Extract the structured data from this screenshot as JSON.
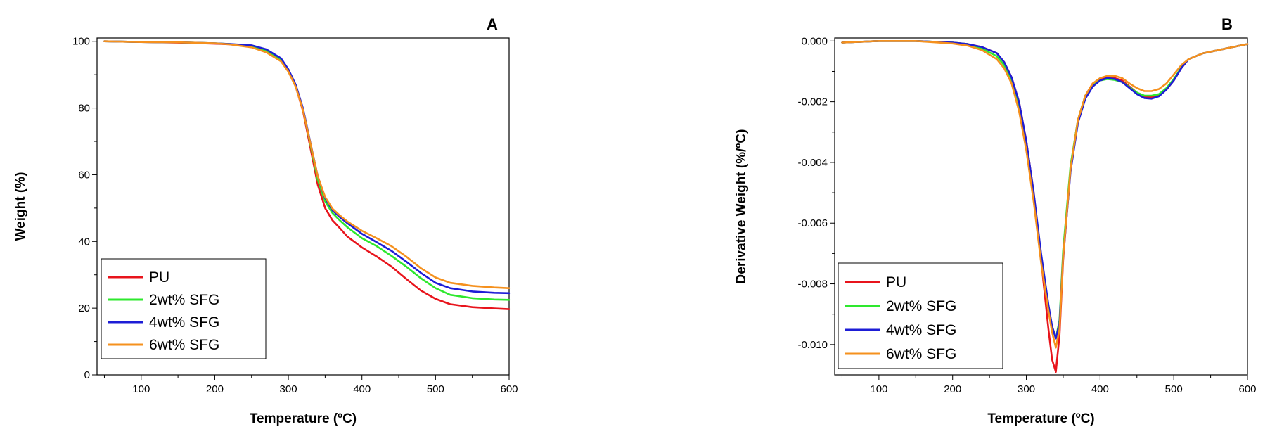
{
  "chart_data": [
    {
      "type": "line",
      "panel_label": "A",
      "title": "",
      "xlabel": "Temperature (ºC)",
      "ylabel": "Weight (%)",
      "xlim": [
        40,
        600
      ],
      "ylim": [
        0,
        101
      ],
      "xticks": [
        100,
        200,
        300,
        400,
        500,
        600
      ],
      "yticks": [
        0,
        20,
        40,
        60,
        80,
        100
      ],
      "grid": false,
      "legend_position": "bottom-left",
      "x": [
        50,
        100,
        150,
        200,
        220,
        250,
        270,
        290,
        300,
        310,
        320,
        330,
        340,
        350,
        360,
        370,
        380,
        400,
        420,
        440,
        460,
        480,
        500,
        520,
        550,
        580,
        600
      ],
      "series": [
        {
          "name": "PU",
          "color": "#e8141c",
          "values": [
            100,
            99.8,
            99.6,
            99.3,
            99.1,
            98.4,
            97.0,
            94.2,
            91.0,
            86.5,
            79.0,
            68.0,
            57.0,
            50.0,
            46.3,
            44.0,
            41.5,
            38.2,
            35.5,
            32.5,
            28.8,
            25.3,
            22.8,
            21.2,
            20.3,
            19.9,
            19.7
          ]
        },
        {
          "name": "2wt% SFG",
          "color": "#2ee82e",
          "values": [
            100,
            99.8,
            99.7,
            99.4,
            99.2,
            98.6,
            97.3,
            94.6,
            91.3,
            86.8,
            79.5,
            69.0,
            58.5,
            52.0,
            48.5,
            46.3,
            44.3,
            41.0,
            38.6,
            35.7,
            32.5,
            29.0,
            26.0,
            24.0,
            23.0,
            22.6,
            22.5
          ]
        },
        {
          "name": "4wt% SFG",
          "color": "#1d1dd6",
          "values": [
            100,
            99.8,
            99.7,
            99.4,
            99.2,
            98.8,
            97.6,
            94.9,
            91.6,
            87.0,
            79.8,
            69.5,
            59.5,
            53.0,
            49.3,
            47.3,
            45.5,
            42.3,
            39.8,
            37.2,
            34.0,
            30.6,
            27.6,
            26.0,
            25.0,
            24.6,
            24.5
          ]
        },
        {
          "name": "6wt% SFG",
          "color": "#f5911e",
          "values": [
            100,
            99.8,
            99.7,
            99.4,
            99.1,
            98.2,
            96.7,
            94.0,
            90.9,
            86.4,
            79.3,
            69.3,
            59.5,
            53.3,
            49.8,
            47.8,
            46.0,
            43.2,
            41.0,
            38.6,
            35.5,
            32.0,
            29.2,
            27.6,
            26.7,
            26.2,
            26.0
          ]
        }
      ]
    },
    {
      "type": "line",
      "panel_label": "B",
      "title": "",
      "xlabel": "Temperature (ºC)",
      "ylabel": "Derivative Weight (%/ºC)",
      "xlim": [
        40,
        600
      ],
      "ylim": [
        -0.011,
        0.0001
      ],
      "xticks": [
        100,
        200,
        300,
        400,
        500,
        600
      ],
      "yticks": [
        0.0,
        -0.002,
        -0.004,
        -0.006,
        -0.008,
        -0.01
      ],
      "ytick_labels": [
        "0.000",
        "-0.002",
        "-0.004",
        "-0.006",
        "-0.008",
        "-0.010"
      ],
      "grid": false,
      "legend_position": "bottom-left",
      "x": [
        50,
        100,
        150,
        200,
        220,
        240,
        260,
        270,
        280,
        290,
        300,
        310,
        320,
        330,
        335,
        340,
        345,
        350,
        360,
        370,
        380,
        390,
        400,
        410,
        420,
        430,
        440,
        450,
        460,
        470,
        480,
        490,
        500,
        510,
        520,
        540,
        560,
        580,
        600
      ],
      "series": [
        {
          "name": "PU",
          "color": "#e8141c",
          "values": [
            -5e-05,
            0.0,
            0.0,
            -5e-05,
            -0.0001,
            -0.0002,
            -0.0004,
            -0.0007,
            -0.0012,
            -0.002,
            -0.0033,
            -0.005,
            -0.0072,
            -0.0095,
            -0.0105,
            -0.0109,
            -0.0097,
            -0.0072,
            -0.0042,
            -0.0026,
            -0.0018,
            -0.0014,
            -0.00125,
            -0.0012,
            -0.00122,
            -0.0013,
            -0.0015,
            -0.0017,
            -0.00183,
            -0.00185,
            -0.0018,
            -0.0016,
            -0.0013,
            -0.0009,
            -0.0006,
            -0.0004,
            -0.0003,
            -0.0002,
            -0.0001
          ]
        },
        {
          "name": "2wt% SFG",
          "color": "#2ee82e",
          "values": [
            -5e-05,
            0.0,
            0.0,
            -5e-05,
            -0.0001,
            -0.00025,
            -0.0005,
            -0.0008,
            -0.0013,
            -0.0022,
            -0.0035,
            -0.0052,
            -0.0072,
            -0.0088,
            -0.0094,
            -0.0098,
            -0.0092,
            -0.0069,
            -0.0041,
            -0.0026,
            -0.0018,
            -0.00145,
            -0.0013,
            -0.00125,
            -0.00128,
            -0.00135,
            -0.00152,
            -0.0017,
            -0.0018,
            -0.0018,
            -0.00175,
            -0.00155,
            -0.00125,
            -0.00088,
            -0.0006,
            -0.0004,
            -0.0003,
            -0.0002,
            -0.0001
          ]
        },
        {
          "name": "4wt% SFG",
          "color": "#1d1dd6",
          "values": [
            -5e-05,
            0.0,
            0.0,
            -5e-05,
            -0.0001,
            -0.0002,
            -0.0004,
            -0.0007,
            -0.0012,
            -0.002,
            -0.0033,
            -0.005,
            -0.007,
            -0.0087,
            -0.0094,
            -0.0098,
            -0.0093,
            -0.0071,
            -0.0043,
            -0.0027,
            -0.0019,
            -0.0015,
            -0.0013,
            -0.00122,
            -0.00125,
            -0.00135,
            -0.00155,
            -0.00175,
            -0.00188,
            -0.0019,
            -0.00182,
            -0.0016,
            -0.0013,
            -0.0009,
            -0.0006,
            -0.0004,
            -0.0003,
            -0.0002,
            -0.0001
          ]
        },
        {
          "name": "6wt% SFG",
          "color": "#f5911e",
          "values": [
            -5e-05,
            0.0,
            0.0,
            -8e-05,
            -0.00015,
            -0.0003,
            -0.0006,
            -0.0009,
            -0.0014,
            -0.0023,
            -0.0036,
            -0.0053,
            -0.0073,
            -0.0089,
            -0.0096,
            -0.0101,
            -0.0095,
            -0.0071,
            -0.0042,
            -0.0026,
            -0.0018,
            -0.0014,
            -0.00122,
            -0.00115,
            -0.00115,
            -0.00122,
            -0.0014,
            -0.00155,
            -0.00165,
            -0.00165,
            -0.00158,
            -0.0014,
            -0.0011,
            -0.0008,
            -0.0006,
            -0.0004,
            -0.0003,
            -0.0002,
            -0.0001
          ]
        }
      ]
    }
  ]
}
